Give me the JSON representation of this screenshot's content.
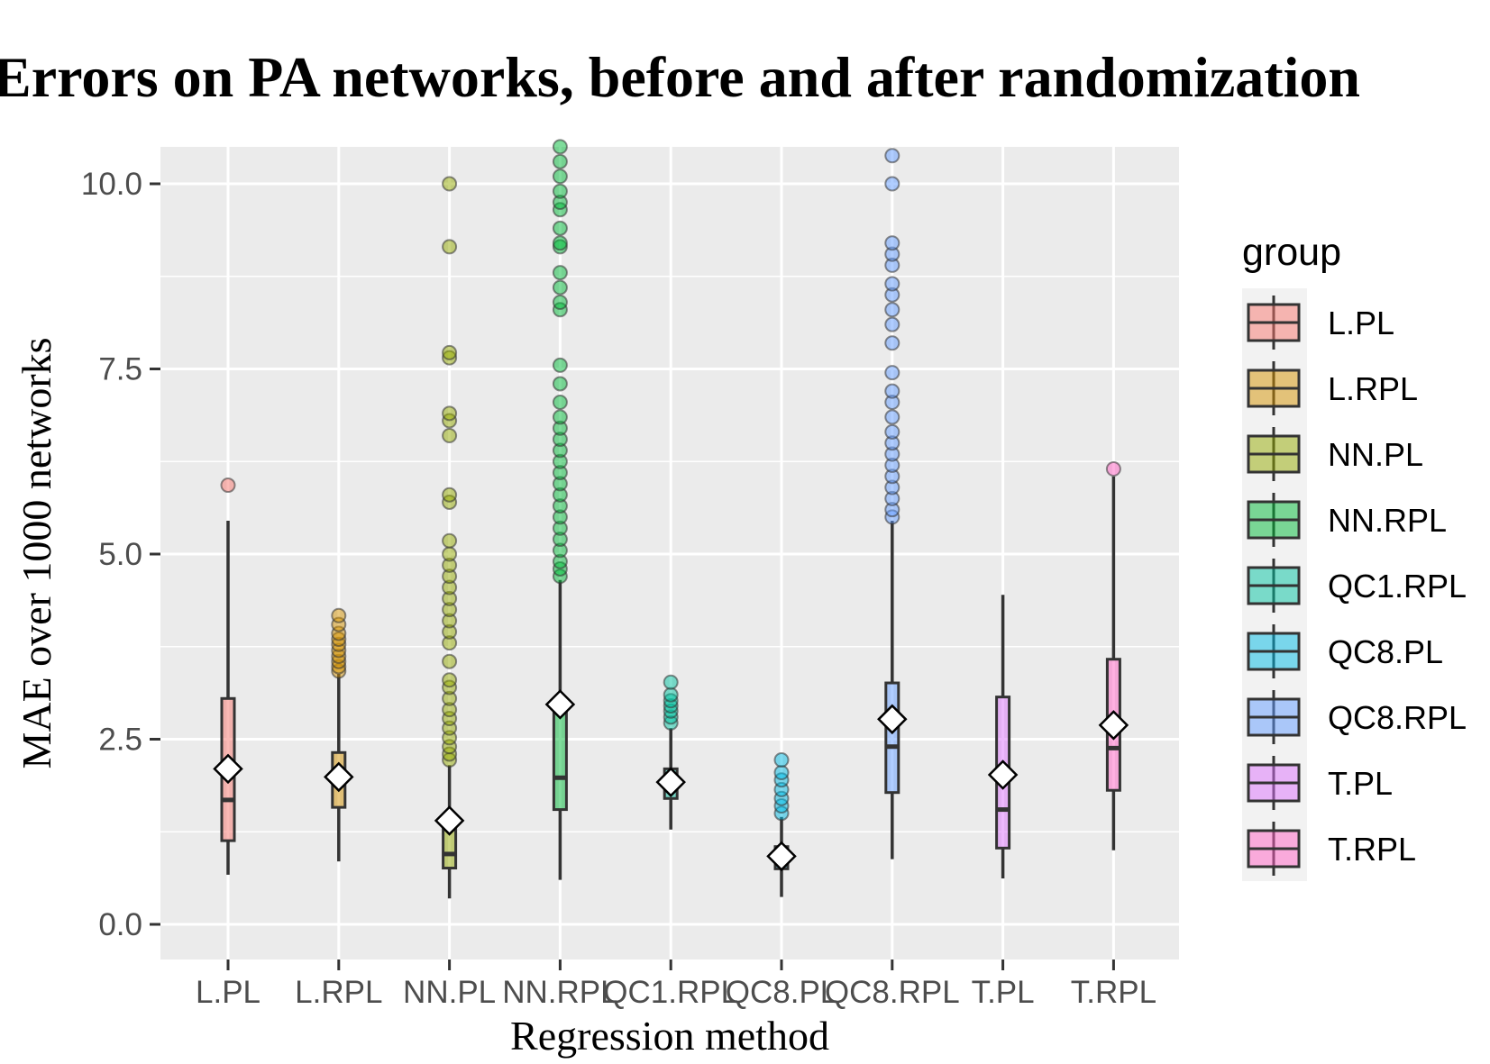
{
  "chart_data": {
    "type": "box",
    "title": "Errors on PA networks, before and after randomization",
    "xlabel": "Regression method",
    "ylabel": "MAE over 1000 networks",
    "ylim": [
      -0.5,
      10.5
    ],
    "yticks": [
      0.0,
      2.5,
      5.0,
      7.5,
      10.0
    ],
    "ytick_labels": [
      "0.0",
      "2.5",
      "5.0",
      "7.5",
      "10.0"
    ],
    "grid": true,
    "legend": {
      "title": "group",
      "position": "right"
    },
    "categories": [
      "L.PL",
      "L.RPL",
      "NN.PL",
      "NN.RPL",
      "QC1.RPL",
      "QC8.PL",
      "QC8.RPL",
      "T.PL",
      "T.RPL"
    ],
    "series": [
      {
        "name": "L.PL",
        "color": "#F8766D",
        "whisker_low": 0.67,
        "q1": 1.13,
        "median": 1.68,
        "q3": 3.05,
        "whisker_high": 5.45,
        "mean": 2.1,
        "outliers": [
          5.93
        ]
      },
      {
        "name": "L.RPL",
        "color": "#D39200",
        "whisker_low": 0.85,
        "q1": 1.58,
        "median": 1.94,
        "q3": 2.32,
        "whisker_high": 3.38,
        "mean": 1.99,
        "outliers": [
          3.42,
          3.48,
          3.55,
          3.62,
          3.7,
          3.78,
          3.85,
          3.93,
          4.05,
          4.17
        ]
      },
      {
        "name": "NN.PL",
        "color": "#93AA00",
        "whisker_low": 0.35,
        "q1": 0.76,
        "median": 0.95,
        "q3": 1.4,
        "whisker_high": 2.15,
        "mean": 1.4,
        "outliers": [
          2.22,
          2.3,
          2.4,
          2.52,
          2.65,
          2.78,
          2.9,
          3.05,
          3.2,
          3.3,
          3.55,
          3.8,
          3.95,
          4.1,
          4.25,
          4.4,
          4.55,
          4.7,
          4.85,
          5.0,
          5.18,
          5.7,
          5.8,
          6.6,
          6.8,
          6.9,
          7.65,
          7.72,
          9.15,
          10.0
        ]
      },
      {
        "name": "NN.RPL",
        "color": "#00BA38",
        "whisker_low": 0.6,
        "q1": 1.55,
        "median": 1.98,
        "q3": 2.98,
        "whisker_high": 4.65,
        "mean": 2.97,
        "outliers": [
          4.7,
          4.8,
          4.9,
          5.05,
          5.2,
          5.35,
          5.5,
          5.65,
          5.8,
          5.95,
          6.1,
          6.25,
          6.4,
          6.55,
          6.7,
          6.85,
          7.05,
          7.3,
          7.55,
          8.3,
          8.4,
          8.6,
          8.8,
          9.15,
          9.2,
          9.4,
          9.65,
          9.75,
          9.9,
          10.1,
          10.3,
          10.5
        ]
      },
      {
        "name": "QC1.RPL",
        "color": "#00C19F",
        "whisker_low": 1.28,
        "q1": 1.7,
        "median": 1.9,
        "q3": 2.1,
        "whisker_high": 2.65,
        "mean": 1.92,
        "outliers": [
          2.72,
          2.8,
          2.88,
          2.95,
          3.02,
          3.1,
          3.27
        ]
      },
      {
        "name": "QC8.PL",
        "color": "#00B9E3",
        "whisker_low": 0.37,
        "q1": 0.75,
        "median": 0.88,
        "q3": 1.05,
        "whisker_high": 1.45,
        "mean": 0.92,
        "outliers": [
          1.5,
          1.6,
          1.7,
          1.82,
          1.95,
          2.05,
          2.22
        ]
      },
      {
        "name": "QC8.RPL",
        "color": "#619CFF",
        "whisker_low": 0.88,
        "q1": 1.78,
        "median": 2.4,
        "q3": 3.26,
        "whisker_high": 5.45,
        "mean": 2.77,
        "outliers": [
          5.5,
          5.6,
          5.75,
          5.9,
          6.05,
          6.2,
          6.35,
          6.5,
          6.65,
          6.85,
          7.05,
          7.2,
          7.45,
          7.85,
          8.1,
          8.3,
          8.5,
          8.65,
          8.9,
          9.05,
          9.2,
          10.0,
          10.38
        ]
      },
      {
        "name": "T.PL",
        "color": "#DB72FB",
        "whisker_low": 0.62,
        "q1": 1.03,
        "median": 1.55,
        "q3": 3.07,
        "whisker_high": 4.45,
        "mean": 2.02,
        "outliers": []
      },
      {
        "name": "T.RPL",
        "color": "#FF61C3",
        "whisker_low": 1.0,
        "q1": 1.81,
        "median": 2.38,
        "q3": 3.58,
        "whisker_high": 6.05,
        "mean": 2.69,
        "outliers": [
          6.15
        ]
      }
    ]
  }
}
